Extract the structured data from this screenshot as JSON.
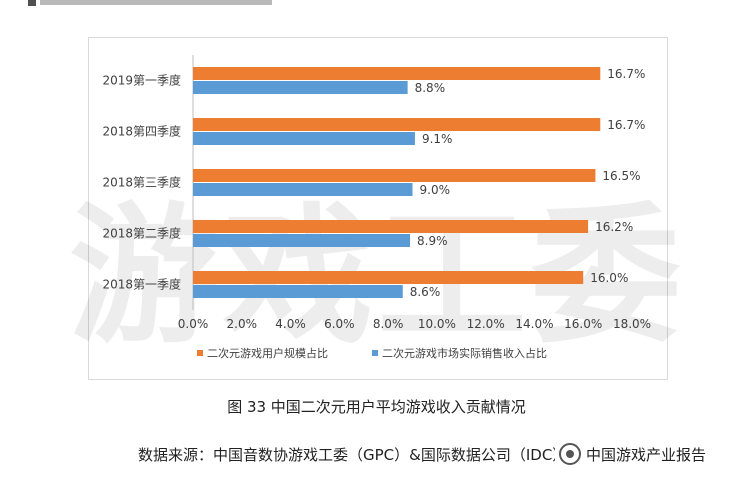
{
  "header_fragment": "",
  "watermark": "游戏工委",
  "chart_data": {
    "type": "bar",
    "orientation": "horizontal",
    "categories": [
      "2019第一季度",
      "2018第四季度",
      "2018第三季度",
      "2018第二季度",
      "2018第一季度"
    ],
    "series": [
      {
        "name": "二次元游戏用户规模占比",
        "color": "#ed7d31",
        "values": [
          16.7,
          16.7,
          16.5,
          16.2,
          16.0
        ],
        "labels": [
          "16.7%",
          "16.7%",
          "16.5%",
          "16.2%",
          "16.0%"
        ]
      },
      {
        "name": "二次元游戏市场实际销售收入占比",
        "color": "#5b9bd5",
        "values": [
          8.8,
          9.1,
          9.0,
          8.9,
          8.6
        ],
        "labels": [
          "8.8%",
          "9.1%",
          "9.0%",
          "8.9%",
          "8.6%"
        ]
      }
    ],
    "xlim": [
      0,
      18
    ],
    "x_ticks": [
      "0.0%",
      "2.0%",
      "4.0%",
      "6.0%",
      "8.0%",
      "10.0%",
      "12.0%",
      "14.0%",
      "16.0%",
      "18.0%"
    ],
    "grid": false,
    "legend_position": "bottom"
  },
  "caption": "图 33 中国二次元用户平均游戏收入贡献情况",
  "source": "数据来源：中国音数协游戏工委（GPC）&国际数据公司（IDC）",
  "account_name": "中国游戏产业报告"
}
